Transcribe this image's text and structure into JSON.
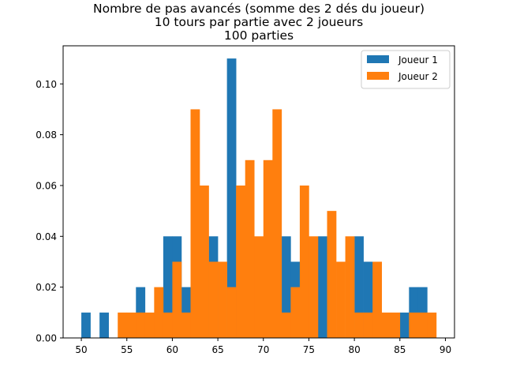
{
  "chart_data": {
    "type": "bar",
    "title_lines": [
      "Nombre de pas avancés (somme des 2 dés du joueur)",
      "10 tours par partie avec 2 joueurs",
      "100 parties"
    ],
    "xlim": [
      48,
      91
    ],
    "ylim": [
      0,
      0.115
    ],
    "xticks": [
      50,
      55,
      60,
      65,
      70,
      75,
      80,
      85,
      90
    ],
    "yticks": [
      0.0,
      0.02,
      0.04,
      0.06,
      0.08,
      0.1
    ],
    "ytick_labels": [
      "0.00",
      "0.02",
      "0.04",
      "0.06",
      "0.08",
      "0.10"
    ],
    "legend_position": "top-right",
    "grid": false,
    "series": [
      {
        "name": "Joueur 1",
        "color": "#1f77b4",
        "bins": [
          [
            50.0,
            51.0,
            0.01
          ],
          [
            51.0,
            52.0,
            0.0
          ],
          [
            52.0,
            53.0,
            0.01
          ],
          [
            53.0,
            54.0,
            0.0
          ],
          [
            54.0,
            55.0,
            0.0
          ],
          [
            55.0,
            56.0,
            0.0
          ],
          [
            56.0,
            57.0,
            0.02
          ],
          [
            57.0,
            58.0,
            0.0
          ],
          [
            58.0,
            59.0,
            0.0
          ],
          [
            59.0,
            60.0,
            0.04
          ],
          [
            60.0,
            61.0,
            0.04
          ],
          [
            61.0,
            62.0,
            0.02
          ],
          [
            62.0,
            63.0,
            0.0
          ],
          [
            63.0,
            64.0,
            0.0
          ],
          [
            64.0,
            65.0,
            0.04
          ],
          [
            65.0,
            66.0,
            0.0
          ],
          [
            66.0,
            67.0,
            0.11
          ],
          [
            67.0,
            68.0,
            0.0
          ],
          [
            68.0,
            69.0,
            0.0
          ],
          [
            69.0,
            70.0,
            0.0
          ],
          [
            70.0,
            71.0,
            0.0
          ],
          [
            71.0,
            72.0,
            0.0
          ],
          [
            72.0,
            73.0,
            0.04
          ],
          [
            73.0,
            74.0,
            0.03
          ],
          [
            74.0,
            75.0,
            0.0
          ],
          [
            75.0,
            76.0,
            0.0
          ],
          [
            76.0,
            77.0,
            0.04
          ],
          [
            77.0,
            78.0,
            0.0
          ],
          [
            78.0,
            79.0,
            0.0
          ],
          [
            79.0,
            80.0,
            0.0
          ],
          [
            80.0,
            81.0,
            0.04
          ],
          [
            81.0,
            82.0,
            0.03
          ],
          [
            82.0,
            83.0,
            0.0
          ],
          [
            83.0,
            84.0,
            0.0
          ],
          [
            84.0,
            85.0,
            0.0
          ],
          [
            85.0,
            86.0,
            0.01
          ],
          [
            86.0,
            87.0,
            0.02
          ],
          [
            87.0,
            88.0,
            0.02
          ]
        ]
      },
      {
        "name": "Joueur 2",
        "color": "#ff7f0e",
        "bins": [
          [
            54.0,
            55.0,
            0.01
          ],
          [
            55.0,
            56.0,
            0.01
          ],
          [
            56.0,
            57.0,
            0.01
          ],
          [
            57.0,
            58.0,
            0.01
          ],
          [
            58.0,
            59.0,
            0.02
          ],
          [
            59.0,
            60.0,
            0.01
          ],
          [
            60.0,
            61.0,
            0.03
          ],
          [
            61.0,
            62.0,
            0.01
          ],
          [
            62.0,
            63.0,
            0.09
          ],
          [
            63.0,
            64.0,
            0.06
          ],
          [
            64.0,
            65.0,
            0.03
          ],
          [
            65.0,
            66.0,
            0.03
          ],
          [
            66.0,
            67.0,
            0.02
          ],
          [
            67.0,
            68.0,
            0.06
          ],
          [
            68.0,
            69.0,
            0.07
          ],
          [
            69.0,
            70.0,
            0.04
          ],
          [
            70.0,
            71.0,
            0.07
          ],
          [
            71.0,
            72.0,
            0.09
          ],
          [
            72.0,
            73.0,
            0.01
          ],
          [
            73.0,
            74.0,
            0.02
          ],
          [
            74.0,
            75.0,
            0.06
          ],
          [
            75.0,
            76.0,
            0.04
          ],
          [
            76.0,
            77.0,
            0.0
          ],
          [
            77.0,
            78.0,
            0.05
          ],
          [
            78.0,
            79.0,
            0.03
          ],
          [
            79.0,
            80.0,
            0.04
          ],
          [
            80.0,
            81.0,
            0.01
          ],
          [
            81.0,
            82.0,
            0.01
          ],
          [
            82.0,
            83.0,
            0.03
          ],
          [
            83.0,
            84.0,
            0.01
          ],
          [
            84.0,
            85.0,
            0.01
          ],
          [
            85.0,
            86.0,
            0.0
          ],
          [
            86.0,
            87.0,
            0.01
          ],
          [
            87.0,
            88.0,
            0.01
          ],
          [
            88.0,
            89.0,
            0.01
          ]
        ]
      }
    ]
  }
}
